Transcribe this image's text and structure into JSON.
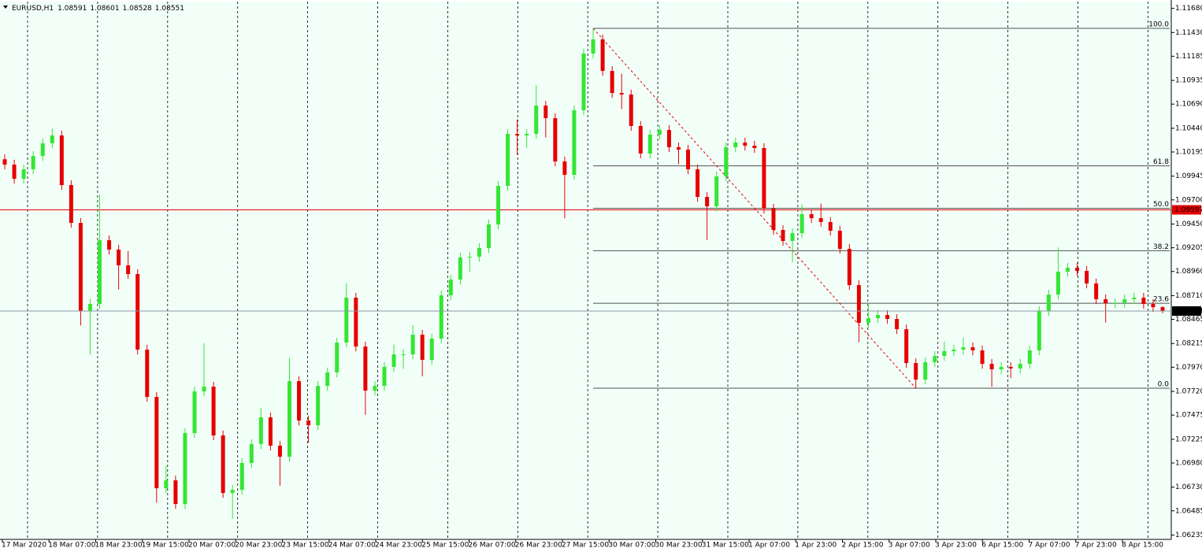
{
  "chart_data": {
    "type": "candlestick",
    "symbol": "EURUSD,H1",
    "up_color": "#33e633",
    "down_color": "#e60000",
    "background": "#f2fff9",
    "ylim": [
      1.0619,
      1.1175
    ],
    "yticks": [
      {
        "value": 1.1168,
        "label": "1.11680"
      },
      {
        "value": 1.1143,
        "label": "1.11430"
      },
      1.11185,
      1.10935,
      {
        "value": 1.1069,
        "label": "1.10690"
      },
      {
        "value": 1.1044,
        "label": "1.10440"
      },
      1.10195,
      1.09945,
      {
        "value": 1.097,
        "label": "1.09700"
      },
      {
        "value": 1.0945,
        "label": "1.09450"
      },
      1.09205,
      {
        "value": 1.0896,
        "label": "1.08960"
      },
      {
        "value": 1.0871,
        "label": "1.08710"
      },
      1.08465,
      1.08215,
      {
        "value": 1.0797,
        "label": "1.07970"
      },
      {
        "value": 1.0772,
        "label": "1.07720"
      },
      1.07475,
      1.07225,
      {
        "value": 1.0698,
        "label": "1.06980"
      },
      {
        "value": 1.0673,
        "label": "1.06730"
      },
      1.06485,
      1.06235
    ],
    "x_labels": [
      "17 Mar 2020",
      "18 Mar 07:00",
      "18 Mar 23:00",
      "19 Mar 15:00",
      "20 Mar 07:00",
      "20 Mar 23:00",
      "23 Mar 15:00",
      "24 Mar 07:00",
      "24 Mar 23:00",
      "25 Mar 15:00",
      "26 Mar 07:00",
      "26 Mar 23:00",
      "27 Mar 15:00",
      "30 Mar 07:00",
      "30 Mar 23:00",
      "31 Mar 15:00",
      "1 Apr 07:00",
      "1 Apr 23:00",
      "2 Apr 15:00",
      "3 Apr 07:00",
      "3 Apr 23:00",
      "6 Apr 15:00",
      "7 Apr 07:00",
      "7 Apr 23:00",
      "8 Apr 15:00"
    ],
    "open": [
      1.1012,
      1.10065,
      1.09918,
      1.10016,
      1.10154,
      1.10285,
      1.10366,
      1.09853,
      1.09462,
      1.08551,
      1.08624,
      1.09283,
      1.09186,
      1.09023,
      1.08933,
      1.08152,
      1.07663,
      1.06719,
      1.06801,
      1.06556,
      1.07289,
      1.0772,
      1.07769,
      1.07265,
      1.0667,
      1.06703,
      1.0698,
      1.07175,
      1.07452,
      1.07159,
      1.07045,
      1.07826,
      1.07419,
      1.0737,
      1.07777,
      1.07916,
      1.08225,
      1.08689,
      1.08184,
      1.07728,
      1.07777,
      1.07973,
      1.08103,
      1.08103,
      1.08306,
      1.08046,
      1.08266,
      1.08713,
      1.08876,
      1.09104,
      1.09112,
      1.09202,
      1.09446,
      1.09845,
      1.10382,
      1.10366,
      1.10382,
      1.10675,
      1.10545,
      1.10097,
      1.09959,
      1.10626,
      1.11213,
      1.11359,
      1.11033,
      1.10805,
      1.10789,
      1.10464,
      1.10179,
      1.10374,
      1.10423,
      1.10244,
      1.10219,
      1.10016,
      1.09731,
      1.09633,
      1.09943,
      1.10244,
      1.10293,
      1.1026,
      1.10236,
      1.09609,
      1.09389,
      1.09275,
      1.09356,
      1.09552,
      1.09511,
      1.09471,
      1.09381,
      1.09194,
      1.08819,
      1.08429,
      1.08477,
      1.0851,
      1.08469,
      1.08363,
      1.08013,
      1.07842,
      1.08022,
      1.08087,
      1.08136,
      1.08152,
      1.08176,
      1.08144,
      1.08005,
      1.07948,
      1.07973,
      1.07957,
      1.08005,
      1.08144,
      1.08551,
      1.08721,
      1.08958,
      1.08998,
      1.08966,
      1.08836,
      1.08673,
      1.08632,
      1.08632,
      1.08673,
      1.08689,
      1.08624,
      1.08591
    ],
    "high": [
      1.1017,
      1.10115,
      1.10066,
      1.10204,
      1.10335,
      1.10436,
      1.10416,
      1.09903,
      1.09512,
      1.08674,
      1.09753,
      1.09333,
      1.09236,
      1.09173,
      1.08983,
      1.08202,
      1.07713,
      1.06951,
      1.06851,
      1.07339,
      1.0777,
      1.08219,
      1.07819,
      1.07315,
      1.06753,
      1.0703,
      1.07225,
      1.07552,
      1.07502,
      1.07209,
      1.08066,
      1.07876,
      1.07469,
      1.07827,
      1.07966,
      1.08275,
      1.08839,
      1.08739,
      1.08234,
      1.07827,
      1.08023,
      1.08203,
      1.08153,
      1.08406,
      1.08356,
      1.08316,
      1.08763,
      1.08926,
      1.09154,
      1.09162,
      1.09252,
      1.09496,
      1.09895,
      1.10432,
      1.10532,
      1.10432,
      1.10885,
      1.10725,
      1.10595,
      1.10147,
      1.10676,
      1.11263,
      1.11473,
      1.11409,
      1.11083,
      1.11005,
      1.10839,
      1.10514,
      1.10424,
      1.10473,
      1.10473,
      1.10294,
      1.10269,
      1.10066,
      1.09781,
      1.09993,
      1.10294,
      1.10343,
      1.10343,
      1.1031,
      1.10286,
      1.09659,
      1.09439,
      1.09406,
      1.09652,
      1.09602,
      1.09661,
      1.09521,
      1.09431,
      1.09244,
      1.08869,
      1.08627,
      1.0856,
      1.0856,
      1.08519,
      1.08413,
      1.08063,
      1.08072,
      1.08137,
      1.08236,
      1.08202,
      1.08276,
      1.08226,
      1.08194,
      1.08055,
      1.08023,
      1.08023,
      1.08055,
      1.08194,
      1.08601,
      1.08771,
      1.09208,
      1.09048,
      1.09048,
      1.09016,
      1.08886,
      1.08723,
      1.08682,
      1.08723,
      1.08739,
      1.08739,
      1.08674,
      1.08601
    ],
    "low": [
      1.10015,
      1.09868,
      1.09868,
      1.09966,
      1.10104,
      1.10235,
      1.09803,
      1.09412,
      1.08401,
      1.08101,
      1.08574,
      1.09136,
      1.08773,
      1.08883,
      1.08102,
      1.07613,
      1.06569,
      1.06669,
      1.06506,
      1.06506,
      1.07239,
      1.0767,
      1.07215,
      1.0662,
      1.064,
      1.06653,
      1.0693,
      1.07125,
      1.07109,
      1.06745,
      1.06995,
      1.07369,
      1.0719,
      1.0732,
      1.07727,
      1.07866,
      1.08175,
      1.08134,
      1.07478,
      1.07678,
      1.07727,
      1.07923,
      1.07953,
      1.08053,
      1.07876,
      1.07996,
      1.08216,
      1.08663,
      1.08826,
      1.08954,
      1.09062,
      1.09152,
      1.09396,
      1.09795,
      1.10166,
      1.10236,
      1.10332,
      1.10345,
      1.10047,
      1.09509,
      1.09909,
      1.10576,
      1.11163,
      1.10983,
      1.10755,
      1.10639,
      1.10414,
      1.10129,
      1.10129,
      1.10324,
      1.10194,
      1.10069,
      1.09966,
      1.09681,
      1.09283,
      1.09583,
      1.09893,
      1.10194,
      1.1021,
      1.10186,
      1.09559,
      1.09339,
      1.09225,
      1.09055,
      1.09306,
      1.09461,
      1.09421,
      1.09331,
      1.09144,
      1.08769,
      1.08229,
      1.08379,
      1.08427,
      1.08419,
      1.08313,
      1.07963,
      1.07753,
      1.07792,
      1.07972,
      1.08037,
      1.08086,
      1.08102,
      1.08094,
      1.07955,
      1.07768,
      1.07898,
      1.07857,
      1.07907,
      1.07955,
      1.08094,
      1.08501,
      1.08671,
      1.08908,
      1.08916,
      1.08786,
      1.08623,
      1.08432,
      1.08582,
      1.08582,
      1.08623,
      1.08574,
      1.08541,
      1.08528
    ],
    "close": [
      1.10065,
      1.09918,
      1.10016,
      1.10154,
      1.10285,
      1.10366,
      1.09853,
      1.09462,
      1.08551,
      1.08624,
      1.09283,
      1.09186,
      1.09023,
      1.08933,
      1.08152,
      1.07663,
      1.06719,
      1.06801,
      1.06556,
      1.07289,
      1.0772,
      1.07769,
      1.07265,
      1.0667,
      1.06703,
      1.0698,
      1.07175,
      1.07452,
      1.07159,
      1.07045,
      1.07826,
      1.07419,
      1.0737,
      1.07777,
      1.07916,
      1.08225,
      1.08689,
      1.08184,
      1.07728,
      1.07777,
      1.07973,
      1.08103,
      1.08103,
      1.08306,
      1.08046,
      1.08266,
      1.08713,
      1.08876,
      1.09104,
      1.09112,
      1.09202,
      1.09446,
      1.09845,
      1.10382,
      1.10366,
      1.10382,
      1.10675,
      1.10545,
      1.10097,
      1.09959,
      1.10626,
      1.11213,
      1.11359,
      1.11033,
      1.10805,
      1.10789,
      1.10464,
      1.10179,
      1.10374,
      1.10423,
      1.10244,
      1.10219,
      1.10016,
      1.09731,
      1.09633,
      1.09943,
      1.10244,
      1.10293,
      1.1026,
      1.10236,
      1.09609,
      1.09389,
      1.09275,
      1.09356,
      1.09552,
      1.09511,
      1.09471,
      1.09381,
      1.09194,
      1.08819,
      1.08429,
      1.08477,
      1.0851,
      1.08469,
      1.08363,
      1.08013,
      1.07842,
      1.08022,
      1.08087,
      1.08136,
      1.08152,
      1.08176,
      1.08144,
      1.08005,
      1.07948,
      1.07973,
      1.07957,
      1.08005,
      1.08144,
      1.08551,
      1.08721,
      1.08958,
      1.08998,
      1.08966,
      1.08836,
      1.08673,
      1.08632,
      1.08632,
      1.08673,
      1.08689,
      1.08624,
      1.08591,
      1.08551
    ],
    "hline": {
      "value": 1.09597,
      "color": "#e60000"
    },
    "fibonacci": {
      "high": 1.11473,
      "low": 1.07753,
      "color": "#505050",
      "levels": [
        {
          "value": 100,
          "label": "100.0"
        },
        61.8,
        {
          "value": 50,
          "label": "50.0"
        },
        38.2,
        23.6,
        {
          "value": 0,
          "label": "0.0"
        }
      ]
    }
  }
}
